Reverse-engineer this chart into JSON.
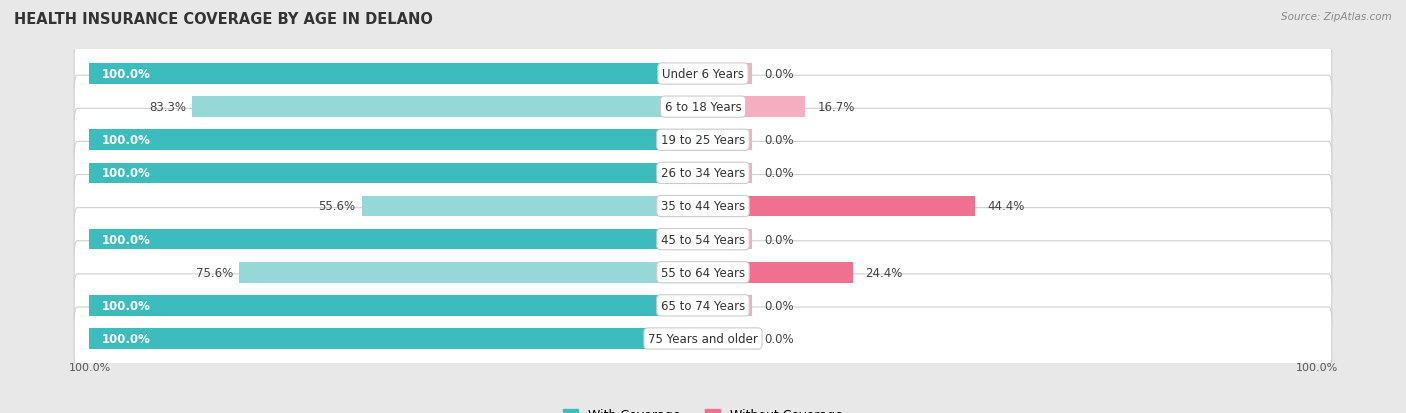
{
  "title": "HEALTH INSURANCE COVERAGE BY AGE IN DELANO",
  "source": "Source: ZipAtlas.com",
  "categories": [
    "Under 6 Years",
    "6 to 18 Years",
    "19 to 25 Years",
    "26 to 34 Years",
    "35 to 44 Years",
    "45 to 54 Years",
    "55 to 64 Years",
    "65 to 74 Years",
    "75 Years and older"
  ],
  "with_coverage": [
    100.0,
    83.3,
    100.0,
    100.0,
    55.6,
    100.0,
    75.6,
    100.0,
    100.0
  ],
  "without_coverage": [
    0.0,
    16.7,
    0.0,
    0.0,
    44.4,
    0.0,
    24.4,
    0.0,
    0.0
  ],
  "color_with": "#3cbcbc",
  "color_without_strong": "#f07090",
  "color_without_light": "#f5aec0",
  "color_with_light": "#96d8d8",
  "row_bg": "#ebebeb",
  "row_white": "#f9f9f9",
  "bg_color": "#e8e8e8",
  "title_fontsize": 10.5,
  "label_fontsize": 8.5,
  "cat_fontsize": 8.5,
  "tick_fontsize": 8,
  "legend_fontsize": 9
}
